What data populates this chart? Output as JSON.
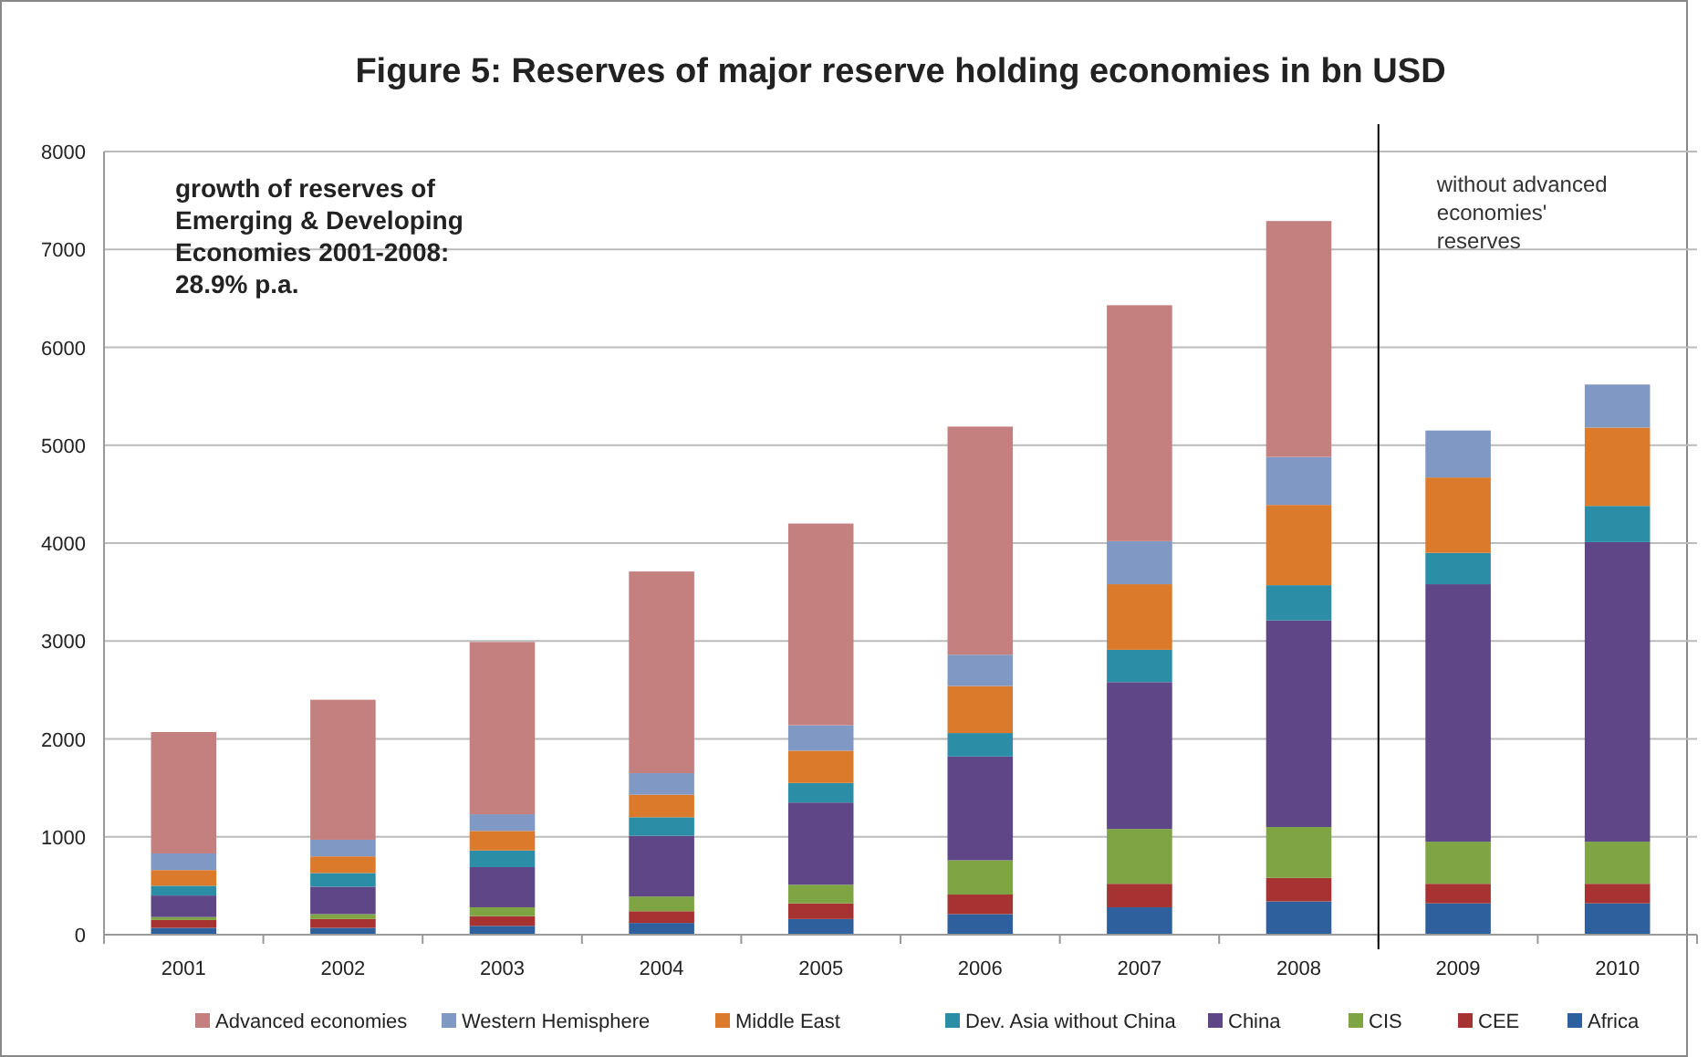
{
  "chart_data": {
    "type": "bar",
    "stacked": true,
    "title": "Figure 5: Reserves of major reserve holding economies in bn USD",
    "x": [
      2001,
      2002,
      2003,
      2004,
      2005,
      2006,
      2007,
      2008,
      2009,
      2010
    ],
    "xlim": [
      2000.5,
      2010.5
    ],
    "xticks": [
      {
        "value": 2000.5,
        "label": null
      },
      2001,
      {
        "value": 2001.5,
        "label": null
      },
      2002,
      {
        "value": 2002.5,
        "label": null
      },
      2003,
      {
        "value": 2003.5,
        "label": null
      },
      2004,
      {
        "value": 2004.5,
        "label": null
      },
      2005,
      {
        "value": 2005.5,
        "label": null
      },
      2006,
      {
        "value": 2006.5,
        "label": null
      },
      2007,
      {
        "value": 2007.5,
        "label": null
      },
      2008,
      {
        "value": 2008.5,
        "label": null
      },
      2009,
      {
        "value": 2009.5,
        "label": null
      },
      2010,
      {
        "value": 2010.5,
        "label": null
      }
    ],
    "series": [
      {
        "name": "Africa",
        "color": "#2e609e",
        "values": [
          70,
          70,
          90,
          120,
          160,
          210,
          280,
          340,
          320,
          320
        ]
      },
      {
        "name": "CEE",
        "color": "#a63232",
        "values": [
          80,
          90,
          100,
          120,
          160,
          200,
          240,
          240,
          200,
          200
        ]
      },
      {
        "name": "CIS",
        "color": "#7fa444",
        "values": [
          30,
          50,
          90,
          150,
          190,
          350,
          560,
          520,
          430,
          430
        ]
      },
      {
        "name": "China",
        "color": "#5e4687",
        "values": [
          220,
          280,
          410,
          620,
          840,
          1060,
          1500,
          2110,
          2630,
          3060
        ]
      },
      {
        "name": "Dev. Asia without China",
        "color": "#2b8ea6",
        "values": [
          100,
          140,
          170,
          190,
          200,
          240,
          330,
          360,
          320,
          370
        ]
      },
      {
        "name": "Middle East",
        "color": "#dc7a2c",
        "values": [
          160,
          170,
          200,
          230,
          330,
          480,
          670,
          820,
          770,
          800
        ]
      },
      {
        "name": "Western Hemisphere",
        "color": "#7f98c4",
        "values": [
          170,
          170,
          170,
          220,
          260,
          320,
          440,
          490,
          480,
          440
        ]
      },
      {
        "name": "Advanced economies",
        "color": "#c4807f",
        "values": [
          1240,
          1430,
          1760,
          2060,
          2060,
          2330,
          2410,
          2410,
          null,
          null
        ]
      }
    ],
    "ylim": [
      0,
      8000
    ],
    "yticks": [
      0,
      1000,
      2000,
      3000,
      4000,
      5000,
      6000,
      7000,
      8000
    ],
    "grid": "y",
    "legend": "bottom",
    "ref_lines": [
      {
        "axis": "x",
        "value": 2008.5,
        "label": "without advanced\neconomies'\nreserves",
        "color": "#000000"
      }
    ],
    "annotations": [
      "growth of reserves of\nEmerging & Developing\nEconomies 2001-2008:\n28.9% p.a."
    ]
  }
}
